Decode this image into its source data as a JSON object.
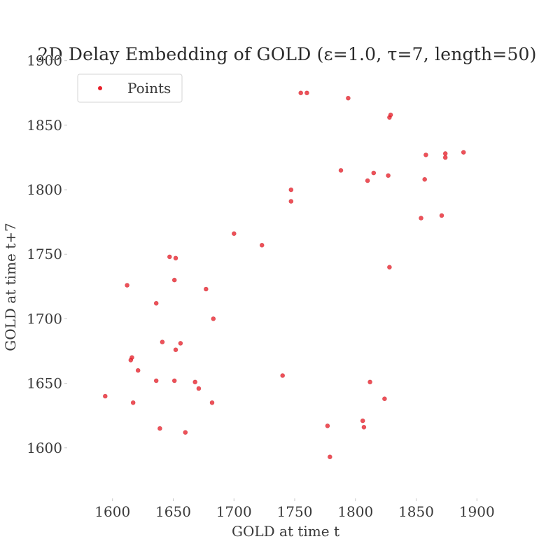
{
  "chart_data": {
    "type": "scatter",
    "title": "2D Delay Embedding of GOLD (ε=1.0, τ=7, length=50)",
    "xlabel": "GOLD at time t",
    "ylabel": "GOLD at time t+7",
    "xlim": [
      1565,
      1920
    ],
    "ylim": [
      1563,
      1902
    ],
    "xticks": [
      1600,
      1650,
      1700,
      1750,
      1800,
      1850,
      1900
    ],
    "yticks": [
      1600,
      1650,
      1700,
      1750,
      1800,
      1850,
      1900
    ],
    "grid": false,
    "legend": {
      "position": "top-left",
      "entries": [
        "Points"
      ]
    },
    "colors": {
      "points": "#e8202a",
      "text": "#3a3a3a"
    },
    "series": [
      {
        "name": "Points",
        "points": [
          [
            1594,
            1640
          ],
          [
            1612,
            1726
          ],
          [
            1616,
            1670
          ],
          [
            1615,
            1668
          ],
          [
            1617,
            1635
          ],
          [
            1621,
            1660
          ],
          [
            1636,
            1712
          ],
          [
            1636,
            1652
          ],
          [
            1639,
            1615
          ],
          [
            1641,
            1682
          ],
          [
            1647,
            1748
          ],
          [
            1652,
            1747
          ],
          [
            1651,
            1730
          ],
          [
            1652,
            1676
          ],
          [
            1651,
            1652
          ],
          [
            1656,
            1681
          ],
          [
            1660,
            1612
          ],
          [
            1668,
            1651
          ],
          [
            1671,
            1646
          ],
          [
            1677,
            1723
          ],
          [
            1683,
            1700
          ],
          [
            1682,
            1635
          ],
          [
            1700,
            1766
          ],
          [
            1723,
            1757
          ],
          [
            1740,
            1656
          ],
          [
            1747,
            1800
          ],
          [
            1747,
            1791
          ],
          [
            1755,
            1875
          ],
          [
            1760,
            1875
          ],
          [
            1777,
            1617
          ],
          [
            1779,
            1593
          ],
          [
            1788,
            1815
          ],
          [
            1794,
            1871
          ],
          [
            1806,
            1621
          ],
          [
            1807,
            1616
          ],
          [
            1810,
            1807
          ],
          [
            1812,
            1651
          ],
          [
            1815,
            1813
          ],
          [
            1824,
            1638
          ],
          [
            1827,
            1811
          ],
          [
            1828,
            1856
          ],
          [
            1829,
            1858
          ],
          [
            1828,
            1740
          ],
          [
            1854,
            1778
          ],
          [
            1857,
            1808
          ],
          [
            1858,
            1827
          ],
          [
            1871,
            1780
          ],
          [
            1874,
            1828
          ],
          [
            1874,
            1825
          ],
          [
            1889,
            1829
          ]
        ]
      }
    ]
  }
}
